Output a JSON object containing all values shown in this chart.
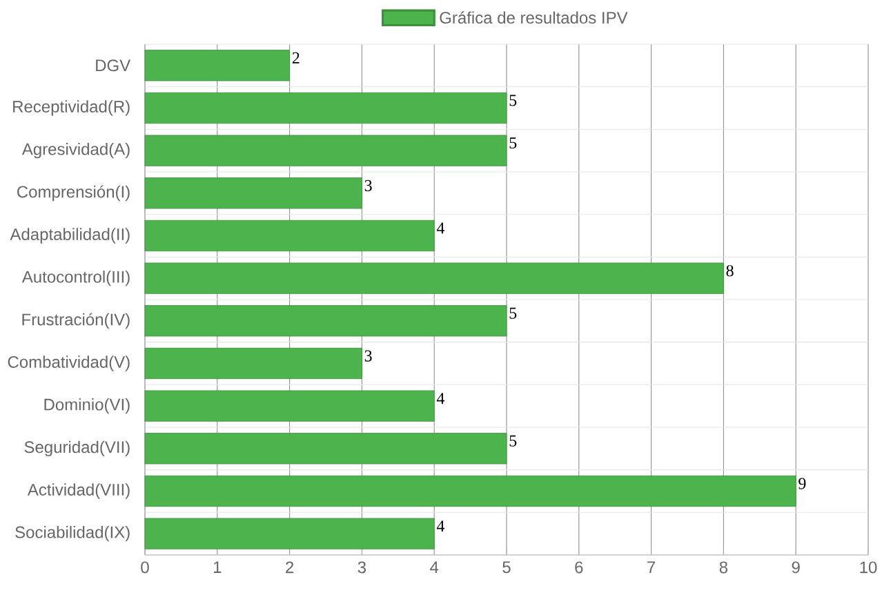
{
  "chart_data": {
    "type": "bar",
    "orientation": "horizontal",
    "categories": [
      "DGV",
      "Receptividad(R)",
      "Agresividad(A)",
      "Comprensión(I)",
      "Adaptabilidad(II)",
      "Autocontrol(III)",
      "Frustración(IV)",
      "Combatividad(V)",
      "Dominio(VI)",
      "Seguridad(VII)",
      "Actividad(VIII)",
      "Sociabilidad(IX)"
    ],
    "series": [
      {
        "name": "Gráfica de resultados IPV",
        "color": "#4db34d",
        "values": [
          2,
          5,
          5,
          3,
          4,
          8,
          5,
          3,
          4,
          5,
          9,
          4
        ]
      }
    ],
    "xlim": [
      0,
      10
    ],
    "xticks": [
      0,
      1,
      2,
      3,
      4,
      5,
      6,
      7,
      8,
      9,
      10
    ],
    "grid": true,
    "legend": "top",
    "data_labels": true
  }
}
